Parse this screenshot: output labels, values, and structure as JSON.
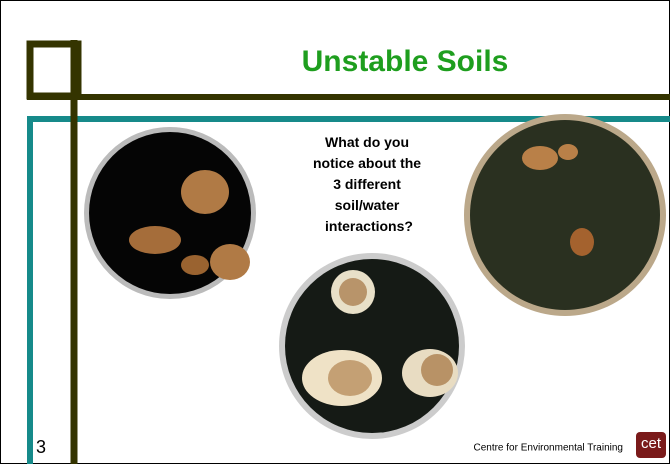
{
  "slide": {
    "title": "Unstable Soils",
    "question_lines": [
      "What do you",
      "notice about the",
      "3 different",
      "soil/water",
      "interactions?"
    ],
    "slide_number": "3",
    "footer": "Centre for Environmental Training",
    "logo": "cet"
  }
}
